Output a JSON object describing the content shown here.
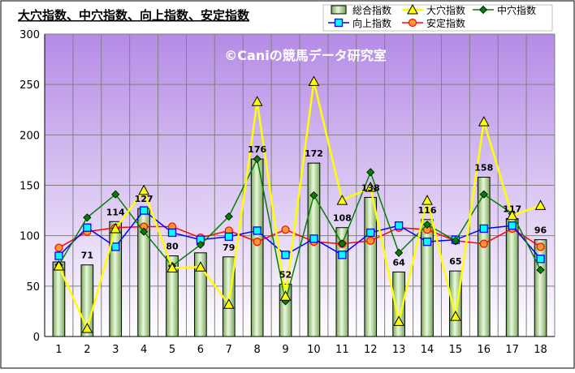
{
  "chart_data": {
    "type": "bar",
    "title": "大穴指数、中穴指数、向上指数、安定指数",
    "watermark": "©Caniの競馬データ研究室",
    "categories": [
      "1",
      "2",
      "3",
      "4",
      "5",
      "6",
      "7",
      "8",
      "9",
      "10",
      "11",
      "12",
      "13",
      "14",
      "15",
      "16",
      "17",
      "18"
    ],
    "ylim": [
      0,
      300
    ],
    "yticks": [
      0,
      50,
      100,
      150,
      200,
      250,
      300
    ],
    "grid": true,
    "legend_position": "top-right",
    "series": [
      {
        "name": "総合指数",
        "kind": "bar",
        "color": "#c9e7b4",
        "values": [
          74,
          71,
          114,
          127,
          80,
          83,
          79,
          176,
          52,
          172,
          108,
          138,
          64,
          116,
          65,
          158,
          117,
          96
        ],
        "labels": [
          "",
          "71",
          "114",
          "127",
          "80",
          "",
          "79",
          "176",
          "52",
          "172",
          "108",
          "138",
          "64",
          "116",
          "65",
          "158",
          "117",
          "96"
        ]
      },
      {
        "name": "大穴指数",
        "kind": "line",
        "marker": "triangle",
        "color": "#ffff00",
        "values": [
          70,
          8,
          107,
          145,
          68,
          69,
          32,
          233,
          40,
          253,
          135,
          148,
          15,
          135,
          20,
          213,
          120,
          130
        ]
      },
      {
        "name": "中穴指数",
        "kind": "line",
        "marker": "diamond",
        "color": "#008000",
        "values": [
          71,
          118,
          141,
          104,
          70,
          91,
          119,
          176,
          35,
          140,
          92,
          163,
          83,
          111,
          95,
          141,
          122,
          66
        ]
      },
      {
        "name": "向上指数",
        "kind": "line",
        "marker": "square",
        "color": "#0000ff",
        "values": [
          80,
          108,
          89,
          125,
          103,
          96,
          99,
          105,
          81,
          97,
          81,
          103,
          110,
          94,
          96,
          107,
          110,
          77
        ]
      },
      {
        "name": "安定指数",
        "kind": "line",
        "marker": "circle",
        "color": "#ff0000",
        "values": [
          88,
          104,
          108,
          109,
          109,
          98,
          105,
          94,
          106,
          94,
          92,
          95,
          108,
          106,
          95,
          92,
          107,
          89
        ]
      }
    ]
  }
}
